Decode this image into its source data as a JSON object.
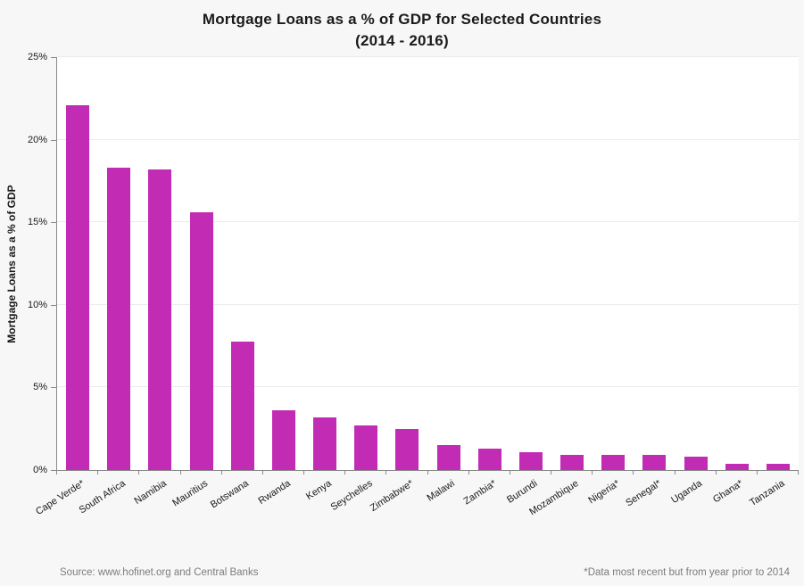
{
  "title": "Mortgage Loans as a % of GDP for Selected Countries",
  "subtitle": "(2014 - 2016)",
  "footer": {
    "source": "Source: www.hofinet.org and Central Banks",
    "note": "*Data most recent but from year prior to 2014"
  },
  "chart_data": {
    "type": "bar",
    "title": "Mortgage Loans as a % of GDP for Selected Countries",
    "subtitle": "(2014 - 2016)",
    "xlabel": "",
    "ylabel": "Mortgage Loans as a % of GDP",
    "categories": [
      "Cape Verde*",
      "South Africa",
      "Namibia",
      "Mauritius",
      "Botswana",
      "Rwanda",
      "Kenya",
      "Seychelles",
      "Zimbabwe*",
      "Malawi",
      "Zambia*",
      "Burundi",
      "Mozambique",
      "Nigeria*",
      "Senegal*",
      "Uganda",
      "Ghana*",
      "Tanzania"
    ],
    "values": [
      22.1,
      18.3,
      18.2,
      15.6,
      7.8,
      3.6,
      3.2,
      2.7,
      2.5,
      1.5,
      1.3,
      1.1,
      0.9,
      0.9,
      0.9,
      0.8,
      0.4,
      0.4
    ],
    "ylim": [
      0,
      25
    ],
    "yticks": [
      0,
      5,
      10,
      15,
      20,
      25
    ],
    "ytick_suffix": "%",
    "grid": true,
    "legend_position": "none",
    "bar_color": "#c22bb3",
    "background_color": "#f7f7f7",
    "plot_background_color": "#ffffff",
    "gridline_color": "#ebebeb",
    "axis_color": "#8a8a8a"
  }
}
